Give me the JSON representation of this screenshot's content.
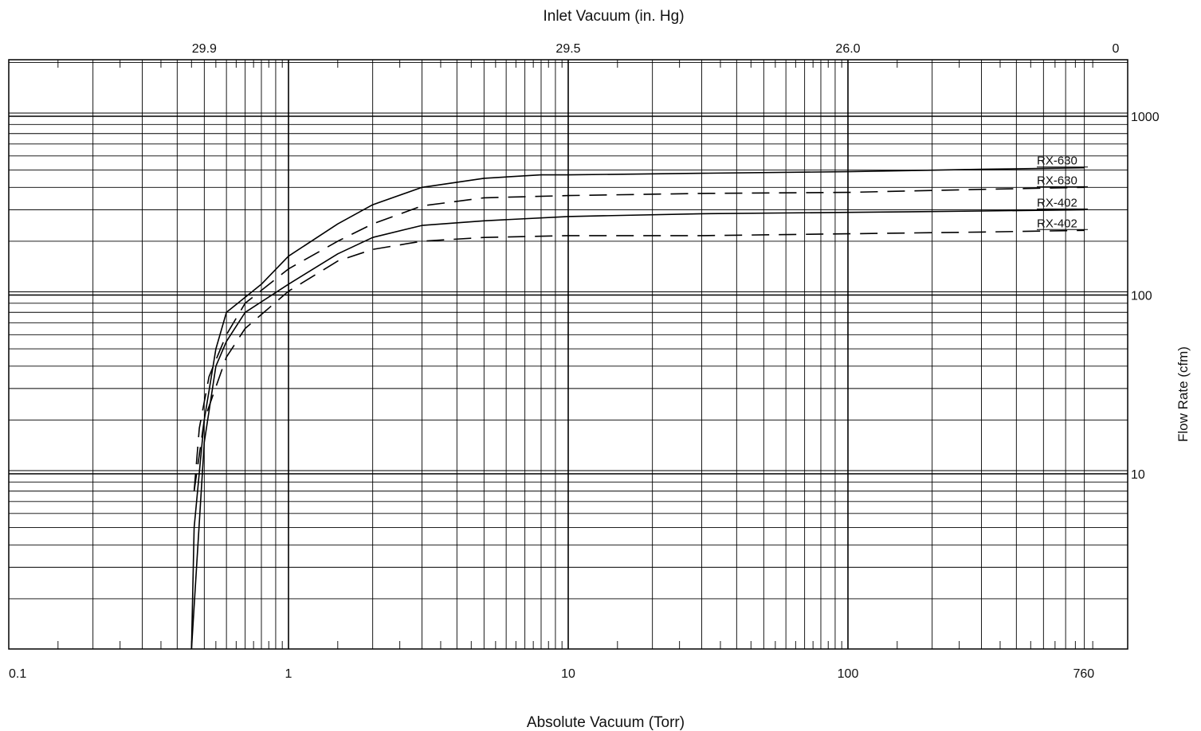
{
  "chart_data": {
    "type": "line",
    "title": "",
    "xlabel": "Absolute Vacuum (Torr)",
    "x2label": "Inlet Vacuum (in. Hg)",
    "ylabel": "Flow Rate (cfm)",
    "x_scale": "log",
    "y_scale": "log",
    "xlim": [
      0.1,
      760
    ],
    "ylim": [
      1,
      2500
    ],
    "grid": true,
    "x_ticks": [
      {
        "value": 0.1,
        "label": "0.1"
      },
      {
        "value": 1,
        "label": "1"
      },
      {
        "value": 10,
        "label": "10"
      },
      {
        "value": 100,
        "label": "100"
      },
      {
        "value": 760,
        "label": "760"
      }
    ],
    "x2_ticks": [
      {
        "value": 0.5,
        "label": "29.9"
      },
      {
        "value": 10,
        "label": "29.5"
      },
      {
        "value": 100,
        "label": "26.0"
      },
      {
        "value": 760,
        "label": "0"
      }
    ],
    "y_ticks": [
      {
        "value": 1000,
        "label": "1000"
      },
      {
        "value": 100,
        "label": "100"
      },
      {
        "value": 10,
        "label": "10"
      }
    ],
    "series": [
      {
        "name": "RX-630",
        "style": "solid",
        "x": [
          0.45,
          0.46,
          0.5,
          0.55,
          0.6,
          0.8,
          1,
          1.5,
          2,
          3,
          5,
          8,
          10,
          30,
          100,
          300,
          700
        ],
        "y": [
          1,
          5,
          20,
          50,
          80,
          115,
          165,
          250,
          320,
          400,
          450,
          470,
          470,
          480,
          490,
          505,
          515
        ]
      },
      {
        "name": "RX-630",
        "style": "dashed",
        "x": [
          0.46,
          0.48,
          0.52,
          0.6,
          0.7,
          1,
          1.5,
          2,
          3,
          5,
          10,
          30,
          100,
          300,
          700
        ],
        "y": [
          8,
          18,
          35,
          60,
          90,
          140,
          200,
          250,
          315,
          350,
          360,
          370,
          375,
          390,
          400
        ]
      },
      {
        "name": "RX-402",
        "style": "solid",
        "x": [
          0.45,
          0.5,
          0.55,
          0.6,
          0.7,
          1,
          1.5,
          2,
          3,
          5,
          10,
          30,
          100,
          300,
          700
        ],
        "y": [
          1,
          15,
          40,
          55,
          80,
          115,
          170,
          210,
          245,
          260,
          275,
          285,
          290,
          295,
          300
        ]
      },
      {
        "name": "RX-402",
        "style": "dashed",
        "x": [
          0.46,
          0.5,
          0.6,
          0.7,
          1,
          1.5,
          2,
          3,
          5,
          10,
          30,
          100,
          300,
          700
        ],
        "y": [
          8,
          20,
          45,
          65,
          105,
          155,
          180,
          200,
          210,
          215,
          215,
          220,
          225,
          230
        ]
      }
    ],
    "legend_placement": "right, at curve ends"
  }
}
